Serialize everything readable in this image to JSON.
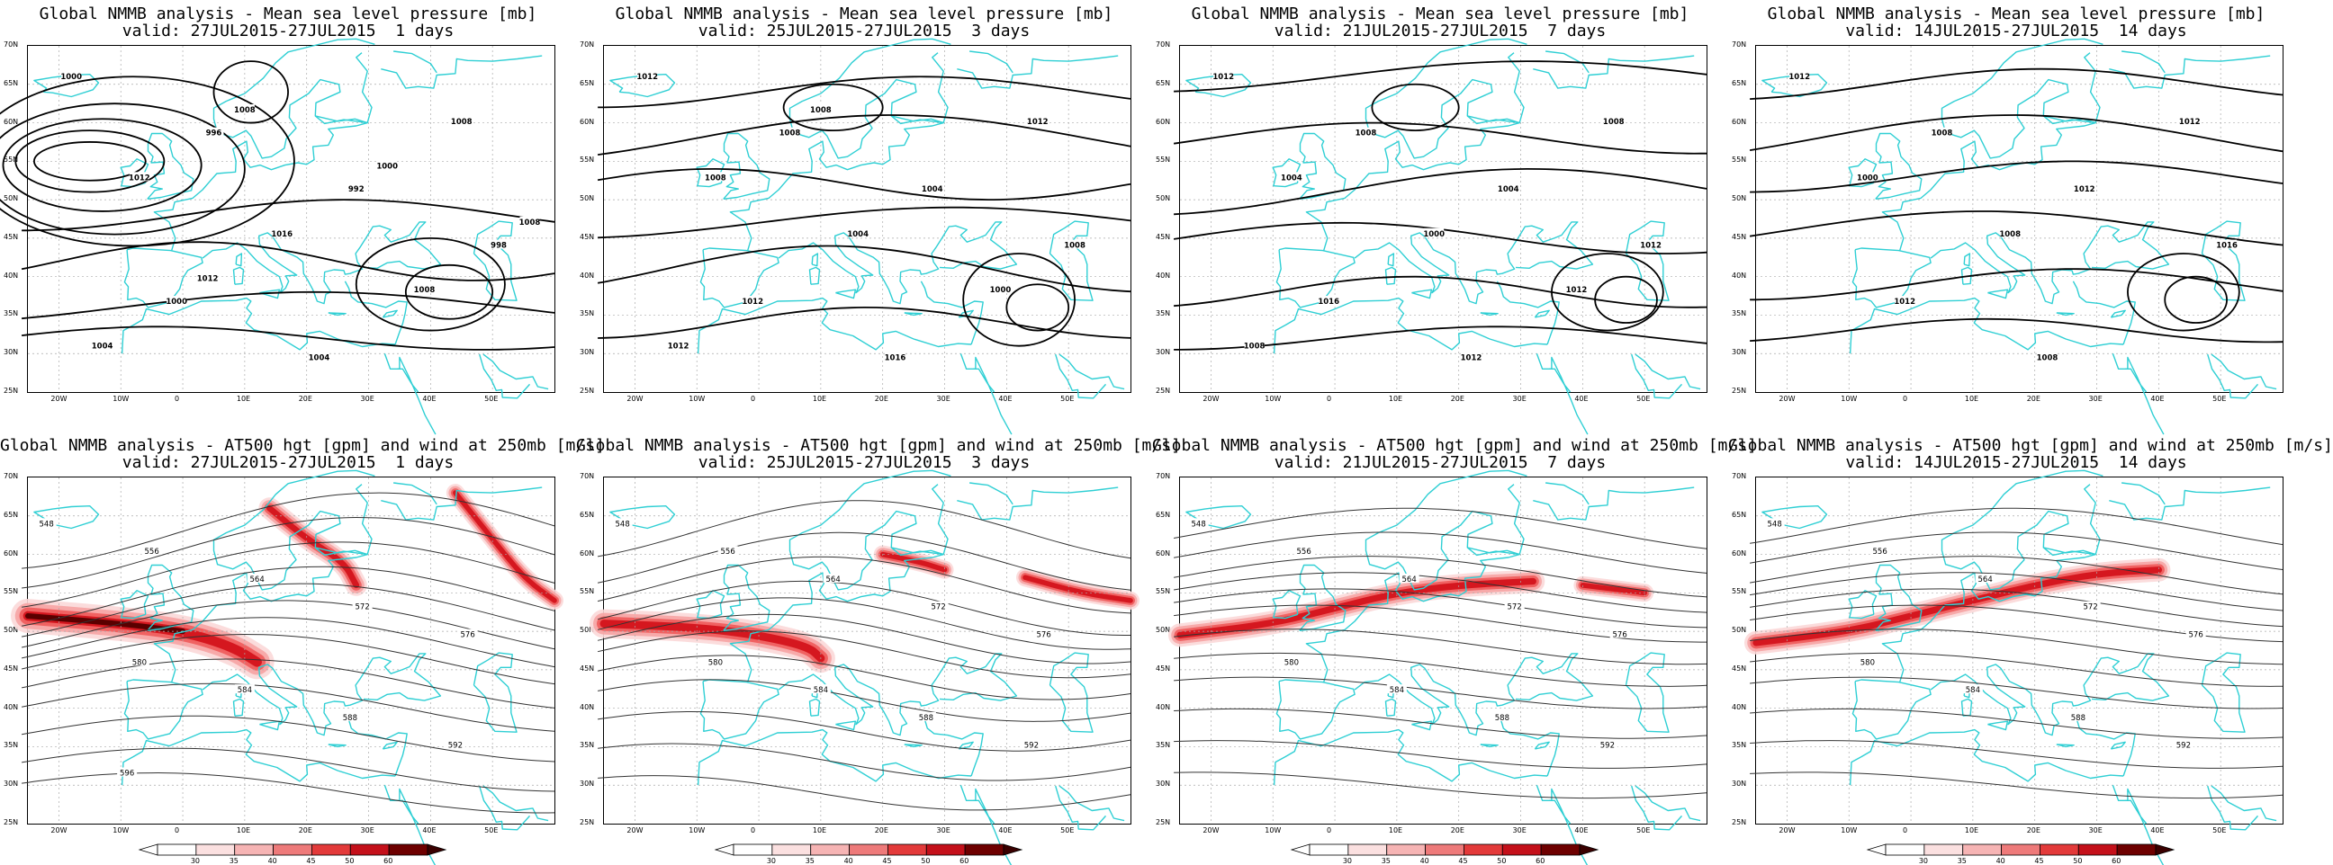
{
  "panels": [
    {
      "title": "Global NMMB analysis - Mean sea level pressure [mb]",
      "valid": "valid: 27JUL2015-27JUL2015  1 days",
      "type": "mslp",
      "labels": [
        "1000",
        "996",
        "992",
        "998",
        "1000",
        "1004",
        "1008",
        "1012",
        "1016",
        "1008",
        "1004",
        "1008",
        "1000",
        "1008",
        "1012"
      ]
    },
    {
      "title": "Global NMMB analysis - Mean sea level pressure [mb]",
      "valid": "valid: 25JUL2015-27JUL2015  3 days",
      "type": "mslp",
      "labels": [
        "1012",
        "1008",
        "1004",
        "1008",
        "1012",
        "1016",
        "1012",
        "1008",
        "1004",
        "1000",
        "1012",
        "1008"
      ]
    },
    {
      "title": "Global NMMB analysis - Mean sea level pressure [mb]",
      "valid": "valid: 21JUL2015-27JUL2015  7 days",
      "type": "mslp",
      "labels": [
        "1012",
        "1008",
        "1004",
        "1012",
        "1016",
        "1012",
        "1008",
        "1004",
        "1000",
        "1012",
        "1008"
      ]
    },
    {
      "title": "Global NMMB analysis - Mean sea level pressure [mb]",
      "valid": "valid: 14JUL2015-27JUL2015  14 days",
      "type": "mslp",
      "labels": [
        "1012",
        "1008",
        "1012",
        "1016",
        "1012",
        "1008",
        "1012",
        "1000",
        "1008"
      ]
    },
    {
      "title": "Global NMMB analysis - AT500 hgt [gpm] and wind at 250mb [m/s]",
      "valid": "valid: 27JUL2015-27JUL2015  1 days",
      "type": "z500",
      "labels": [
        "548",
        "556",
        "564",
        "572",
        "576",
        "580",
        "584",
        "588",
        "592",
        "596"
      ]
    },
    {
      "title": "Global NMMB analysis - AT500 hgt [gpm] and wind at 250mb [m/s]",
      "valid": "valid: 25JUL2015-27JUL2015  3 days",
      "type": "z500",
      "labels": [
        "548",
        "556",
        "564",
        "572",
        "576",
        "580",
        "584",
        "588",
        "592"
      ]
    },
    {
      "title": "Global NMMB analysis - AT500 hgt [gpm] and wind at 250mb [m/s]",
      "valid": "valid: 21JUL2015-27JUL2015  7 days",
      "type": "z500",
      "labels": [
        "548",
        "556",
        "564",
        "572",
        "576",
        "580",
        "584",
        "588",
        "592"
      ]
    },
    {
      "title": "Global NMMB analysis - AT500 hgt [gpm] and wind at 250mb [m/s]",
      "valid": "valid: 14JUL2015-27JUL2015  14 days",
      "type": "z500",
      "labels": [
        "548",
        "556",
        "564",
        "572",
        "576",
        "580",
        "584",
        "588",
        "592"
      ]
    }
  ],
  "lat_ticks": [
    "70N",
    "65N",
    "60N",
    "55N",
    "50N",
    "45N",
    "40N",
    "35N",
    "30N",
    "25N"
  ],
  "lon_ticks": [
    "20W",
    "10W",
    "0",
    "10E",
    "20E",
    "30E",
    "40E",
    "50E"
  ],
  "colorbar_ticks": [
    "30",
    "35",
    "40",
    "45",
    "50",
    "60"
  ],
  "colors": {
    "coast": "#2fcfd4",
    "contour": "#000000",
    "jet": "#e8141a",
    "grid": "#999999"
  }
}
